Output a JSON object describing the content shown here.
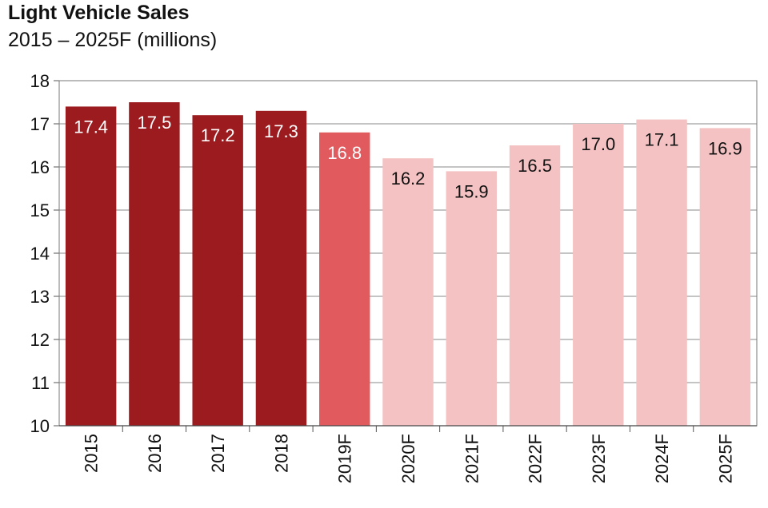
{
  "chart_data": {
    "type": "bar",
    "title": "Light Vehicle Sales",
    "subtitle": "2015 – 2025F (millions)",
    "categories": [
      "2015",
      "2016",
      "2017",
      "2018",
      "2019F",
      "2020F",
      "2021F",
      "2022F",
      "2023F",
      "2024F",
      "2025F"
    ],
    "values": [
      17.4,
      17.5,
      17.2,
      17.3,
      16.8,
      16.2,
      15.9,
      16.5,
      17.0,
      17.1,
      16.9
    ],
    "labels": [
      "17.4",
      "17.5",
      "17.2",
      "17.3",
      "16.8",
      "16.2",
      "15.9",
      "16.5",
      "17.0",
      "17.1",
      "16.9"
    ],
    "ylim": [
      10,
      18
    ],
    "yticks": [
      "10",
      "11",
      "12",
      "13",
      "14",
      "15",
      "16",
      "17",
      "18"
    ],
    "grid": true,
    "bar_colors": [
      "#9b1b1f",
      "#9b1b1f",
      "#9b1b1f",
      "#9b1b1f",
      "#e05a5e",
      "#f4c2c2",
      "#f4c2c2",
      "#f4c2c2",
      "#f4c2c2",
      "#f4c2c2",
      "#f4c2c2"
    ],
    "label_colors": [
      "#ffffff",
      "#ffffff",
      "#ffffff",
      "#ffffff",
      "#ffffff",
      "#111111",
      "#111111",
      "#111111",
      "#111111",
      "#111111",
      "#111111"
    ]
  }
}
